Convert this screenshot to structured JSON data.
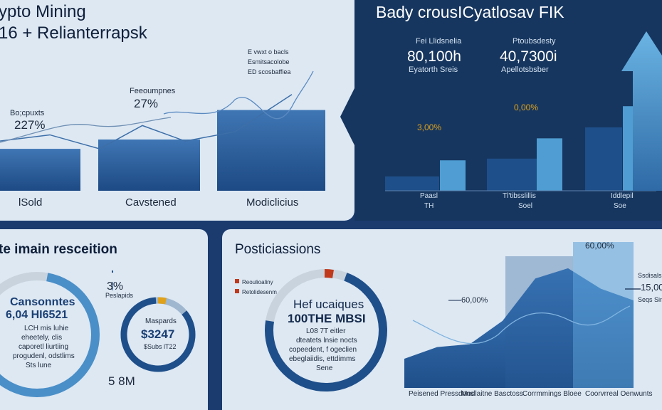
{
  "top_left": {
    "title_line1": "ypto Mining",
    "title_line2": "16 + Relianterrapsk",
    "bars": [
      {
        "label": "lSold",
        "value": 27,
        "note": "Bo;cpuxts",
        "pct": "227%"
      },
      {
        "label": "Cavstened",
        "value": 33,
        "note": "Feeoumpnes",
        "pct": "27%"
      },
      {
        "label": "Modiclicius",
        "value": 52,
        "note": "",
        "pct": ""
      }
    ],
    "annot_lines": [
      "E vwxt o bacls",
      "Esmitsacolobe",
      "ED scosbaffiea"
    ]
  },
  "top_right": {
    "title": "Bady crousICyatlosav FIK",
    "stat1": {
      "label": "Fei Llidsnelia",
      "value": "80,100h",
      "sub": "Eyatorth Sreis"
    },
    "stat2": {
      "label": "Ptoubsdesty",
      "value": "40,7300i",
      "sub": "Apellotsbsber"
    },
    "gold_notes": [
      "3,00%",
      "0,00%"
    ],
    "groups": [
      {
        "label": "Paasl",
        "sub": "TH",
        "dark": 17,
        "light": 36
      },
      {
        "label": "Tl'tibsslillis",
        "sub": "Soel",
        "dark": 38,
        "light": 62
      },
      {
        "label": "Iddlepil",
        "sub": "Soe",
        "dark": 75,
        "light": 100
      }
    ],
    "colors": {
      "dark": "#1f4f8a",
      "light": "#5aa6d6"
    }
  },
  "bottom_left": {
    "section_title": "te imain resceition",
    "donut1": {
      "title": "Cansonntes",
      "value": "6,04 HI6521",
      "lines": [
        "LCH mis luhie",
        "eheetely, clis",
        "caporetl liurtiing",
        "progudenl, odstlims",
        "Sts lune"
      ],
      "fraction": 0.62
    },
    "pct_note": "3%",
    "pct_sub": "Peslapids",
    "donut2": {
      "title": "Maspards",
      "value": "$3247",
      "sub": "$Subs lT22",
      "fraction": 0.85
    },
    "bottom_value": "5 8M"
  },
  "bottom_right": {
    "section_title": "Posticiassions",
    "legend": [
      "Reoulioaliny",
      "Retolidesenm"
    ],
    "donut": {
      "title": "Hef ucaiques",
      "value": "100THE MBSI",
      "lines": [
        "L08 7T eitler",
        "dteatets lnsie nocts",
        "copeedent, f ogeclien",
        "ebeglaiidis, ettdimms",
        "Sene"
      ],
      "fraction": 0.72
    },
    "area_label": "60,00%",
    "peak_label": "60,00%",
    "side_values": [
      "Ssdisalsis",
      "15,00",
      "Seqs Sinlar"
    ],
    "x_labels": [
      "Peisened Pressdons",
      "Modlaitne Basctoss",
      "Corrmmings Bloee",
      "Coorvrreal Oenwunts"
    ]
  },
  "chart_data": [
    {
      "type": "bar",
      "title": "",
      "categories": [
        "lSold",
        "Cavstened",
        "Modiclicius"
      ],
      "values": [
        27,
        33,
        52
      ],
      "overlay_series": [
        {
          "values": [
            32,
            36,
            27,
            42,
            32,
            38,
            62
          ]
        }
      ]
    },
    {
      "type": "bar",
      "title": "Bady crousICyatlosav FIK",
      "categories": [
        "Paasl",
        "Tl'tibsslillis",
        "Iddlepil"
      ],
      "series": [
        {
          "values": [
            17,
            38,
            75
          ]
        },
        {
          "values": [
            36,
            62,
            100
          ]
        }
      ]
    },
    {
      "type": "area",
      "title": "",
      "x": [
        0,
        1,
        2,
        3,
        4,
        5,
        6,
        7
      ],
      "values": [
        20,
        28,
        30,
        46,
        75,
        82,
        68,
        60
      ]
    }
  ]
}
